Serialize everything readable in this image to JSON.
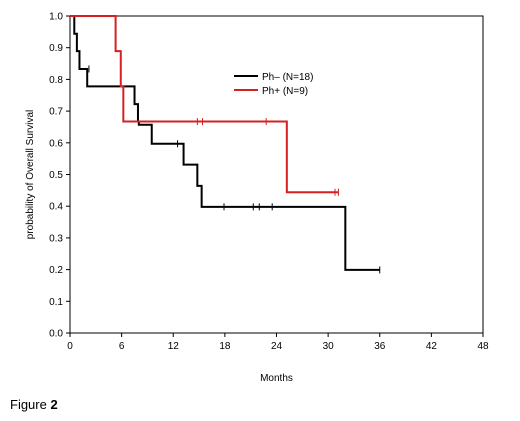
{
  "chart_data": {
    "type": "line",
    "subtype": "kaplan-meier step",
    "xlabel": "Months",
    "ylabel": "probability of Overall Survival",
    "xlim": [
      0,
      48
    ],
    "ylim": [
      0,
      1.0
    ],
    "xticks": [
      0,
      6,
      12,
      18,
      24,
      30,
      36,
      42,
      48
    ],
    "yticks": [
      0.0,
      0.1,
      0.2,
      0.3,
      0.4,
      0.5,
      0.6,
      0.7,
      0.8,
      0.9,
      1.0
    ],
    "grid": false,
    "legend_position": "top-right",
    "series": [
      {
        "name": "Ph– (N=18)",
        "color": "#000000",
        "steps": [
          [
            0,
            1.0
          ],
          [
            0.5,
            0.944
          ],
          [
            0.8,
            0.889
          ],
          [
            1.1,
            0.833
          ],
          [
            2.0,
            0.778
          ],
          [
            7.5,
            0.722
          ],
          [
            7.9,
            0.667
          ],
          [
            8.0,
            0.657
          ],
          [
            9.5,
            0.597
          ],
          [
            13.2,
            0.531
          ],
          [
            14.8,
            0.464
          ],
          [
            15.3,
            0.398
          ],
          [
            32.0,
            0.199
          ],
          [
            36.0,
            0.199
          ]
        ],
        "censored": [
          [
            2.2,
            0.833
          ],
          [
            12.5,
            0.597
          ],
          [
            17.9,
            0.398
          ],
          [
            21.3,
            0.398
          ],
          [
            22.0,
            0.398
          ],
          [
            23.5,
            0.398
          ],
          [
            36.0,
            0.199
          ]
        ]
      },
      {
        "name": "Ph+ (N=9)",
        "color": "#d42020",
        "steps": [
          [
            0,
            1.0
          ],
          [
            5.3,
            0.889
          ],
          [
            5.9,
            0.778
          ],
          [
            6.2,
            0.667
          ],
          [
            25.2,
            0.444
          ],
          [
            31.2,
            0.444
          ]
        ],
        "censored": [
          [
            14.8,
            0.667
          ],
          [
            15.4,
            0.667
          ],
          [
            22.8,
            0.667
          ],
          [
            30.8,
            0.444
          ],
          [
            31.2,
            0.444
          ]
        ]
      }
    ]
  },
  "caption": {
    "text": "Figure",
    "number": "2"
  }
}
